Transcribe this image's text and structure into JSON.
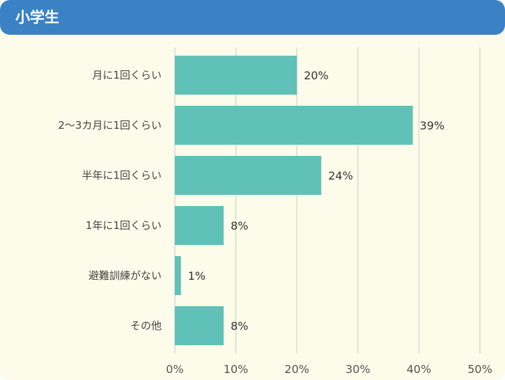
{
  "header": {
    "title": "小学生"
  },
  "colors": {
    "bar": "#60c1b8",
    "header": "#3a82c4",
    "background": "#fdfbea",
    "grid": "#d7dbd2"
  },
  "chart_data": {
    "type": "bar",
    "orientation": "horizontal",
    "title": "小学生",
    "categories": [
      "月に1回くらい",
      "2〜3カ月に1回くらい",
      "半年に1回くらい",
      "1年に1回くらい",
      "避難訓練がない",
      "その他"
    ],
    "values": [
      20,
      39,
      24,
      8,
      1,
      8
    ],
    "value_labels": [
      "20%",
      "39%",
      "24%",
      "8%",
      "1%",
      "8%"
    ],
    "xlim": [
      0,
      50
    ],
    "xticks": [
      0,
      10,
      20,
      30,
      40,
      50
    ],
    "xtick_labels": [
      "0%",
      "10%",
      "20%",
      "30%",
      "40%",
      "50%"
    ],
    "grid": true,
    "legend": "none"
  }
}
